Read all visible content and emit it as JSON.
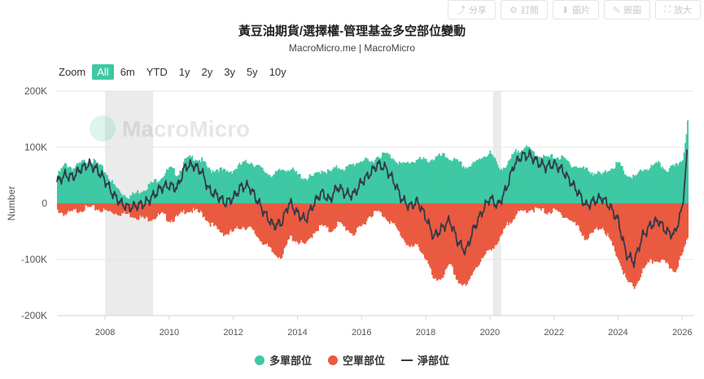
{
  "toolbar": {
    "share": "分享",
    "subscribe": "訂閱",
    "image": "圖片",
    "embed": "嵌圖",
    "fullscreen": "放大"
  },
  "header": {
    "title": "黃豆油期貨/選擇權-管理基金多空部位變動",
    "subtitle": "MacroMicro.me | MacroMicro"
  },
  "zoom": {
    "label": "Zoom",
    "options": [
      "All",
      "6m",
      "YTD",
      "1y",
      "2y",
      "3y",
      "5y",
      "10y"
    ],
    "selected": "All"
  },
  "watermark": "MacroMicro",
  "colors": {
    "long": "#3ec8a3",
    "short": "#ea5a40",
    "net": "#333a47",
    "recession": "#ebebeb"
  },
  "chart_data": {
    "type": "area",
    "title": "黃豆油期貨/選擇權-管理基金多空部位變動",
    "ylabel": "Number",
    "ylim": [
      -200000,
      200000
    ],
    "yticks": [
      -200000,
      -100000,
      0,
      100000,
      200000
    ],
    "ytick_labels": [
      "-200K",
      "-100K",
      "0",
      "100K",
      "200K"
    ],
    "xlim": [
      2006.5,
      2026.35
    ],
    "xticks": [
      2008,
      2010,
      2012,
      2014,
      2016,
      2018,
      2020,
      2022,
      2024,
      2026
    ],
    "recession_bands": [
      [
        2008.0,
        2009.5
      ],
      [
        2020.1,
        2020.35
      ]
    ],
    "x": [
      2006.5,
      2006.75,
      2007.0,
      2007.25,
      2007.5,
      2007.75,
      2008.0,
      2008.25,
      2008.5,
      2008.75,
      2009.0,
      2009.25,
      2009.5,
      2009.75,
      2010.0,
      2010.25,
      2010.5,
      2010.75,
      2011.0,
      2011.25,
      2011.5,
      2011.75,
      2012.0,
      2012.25,
      2012.5,
      2012.75,
      2013.0,
      2013.25,
      2013.5,
      2013.75,
      2014.0,
      2014.25,
      2014.5,
      2014.75,
      2015.0,
      2015.25,
      2015.5,
      2015.75,
      2016.0,
      2016.25,
      2016.5,
      2016.75,
      2017.0,
      2017.25,
      2017.5,
      2017.75,
      2018.0,
      2018.25,
      2018.5,
      2018.75,
      2019.0,
      2019.25,
      2019.5,
      2019.75,
      2020.0,
      2020.25,
      2020.5,
      2020.75,
      2021.0,
      2021.25,
      2021.5,
      2021.75,
      2022.0,
      2022.25,
      2022.5,
      2022.75,
      2023.0,
      2023.25,
      2023.5,
      2023.75,
      2024.0,
      2024.25,
      2024.5,
      2024.75,
      2025.0,
      2025.25,
      2025.5,
      2025.75,
      2026.0,
      2026.15
    ],
    "series": [
      {
        "name": "多單部位",
        "values": [
          50000,
          70000,
          62000,
          72000,
          78000,
          70000,
          55000,
          32000,
          18000,
          12000,
          20000,
          28000,
          38000,
          48000,
          62000,
          52000,
          78000,
          82000,
          76000,
          58000,
          62000,
          55000,
          60000,
          70000,
          75000,
          65000,
          55000,
          50000,
          60000,
          62000,
          50000,
          45000,
          48000,
          60000,
          55000,
          65000,
          62000,
          70000,
          78000,
          72000,
          85000,
          88000,
          80000,
          68000,
          74000,
          78000,
          76000,
          80000,
          85000,
          80000,
          72000,
          64000,
          70000,
          84000,
          90000,
          65000,
          64000,
          90000,
          100000,
          95000,
          85000,
          80000,
          84000,
          80000,
          70000,
          64000,
          60000,
          54000,
          50000,
          64000,
          70000,
          50000,
          45000,
          60000,
          64000,
          70000,
          60000,
          64000,
          80000,
          145000
        ]
      },
      {
        "name": "空單部位",
        "values": [
          -12000,
          -20000,
          -15000,
          -10000,
          -8000,
          -10000,
          -14000,
          -16000,
          -18000,
          -20000,
          -24000,
          -28000,
          -25000,
          -20000,
          -30000,
          -25000,
          -12000,
          -14000,
          -18000,
          -35000,
          -48000,
          -55000,
          -50000,
          -40000,
          -45000,
          -60000,
          -75000,
          -90000,
          -95000,
          -60000,
          -68000,
          -75000,
          -50000,
          -40000,
          -50000,
          -35000,
          -45000,
          -55000,
          -40000,
          -20000,
          -15000,
          -25000,
          -40000,
          -60000,
          -80000,
          -75000,
          -100000,
          -140000,
          -130000,
          -110000,
          -140000,
          -150000,
          -115000,
          -100000,
          -80000,
          -70000,
          -40000,
          -22000,
          -15000,
          -10000,
          -12000,
          -15000,
          -14000,
          -20000,
          -30000,
          -44000,
          -65000,
          -50000,
          -40000,
          -70000,
          -100000,
          -140000,
          -150000,
          -120000,
          -104000,
          -100000,
          -110000,
          -120000,
          -90000,
          -60000
        ]
      },
      {
        "name": "淨部位",
        "values": [
          38000,
          50000,
          47000,
          62000,
          70000,
          60000,
          41000,
          16000,
          0,
          -8000,
          -4000,
          0,
          13000,
          28000,
          32000,
          27000,
          66000,
          68000,
          58000,
          23000,
          14000,
          0,
          10000,
          30000,
          30000,
          5000,
          -20000,
          -40000,
          -35000,
          2000,
          -18000,
          -30000,
          -2000,
          20000,
          5000,
          30000,
          17000,
          15000,
          38000,
          52000,
          70000,
          63000,
          40000,
          8000,
          -6000,
          3000,
          -24000,
          -60000,
          -45000,
          -30000,
          -68000,
          -86000,
          -45000,
          -16000,
          10000,
          -5000,
          24000,
          68000,
          85000,
          85000,
          73000,
          65000,
          70000,
          60000,
          40000,
          20000,
          -5000,
          4000,
          10000,
          -6000,
          -30000,
          -90000,
          -105000,
          -60000,
          -40000,
          -30000,
          -50000,
          -56000,
          -10000,
          85000
        ]
      }
    ],
    "legend": [
      "多單部位",
      "空單部位",
      "淨部位"
    ]
  }
}
